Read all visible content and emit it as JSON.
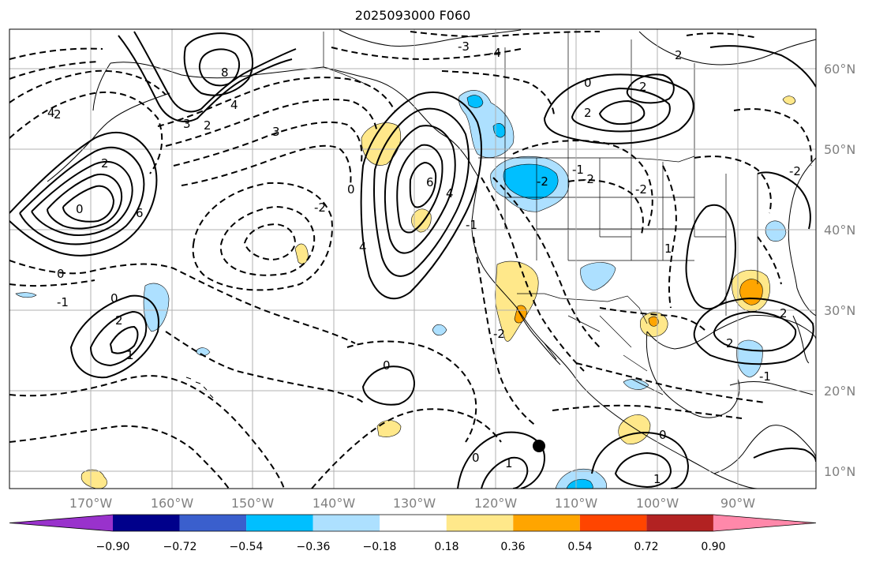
{
  "title": "2025093000 F060",
  "map": {
    "lon_labels": [
      "170°W",
      "160°W",
      "150°W",
      "140°W",
      "130°W",
      "120°W",
      "110°W",
      "100°W",
      "90°W"
    ],
    "lat_labels": [
      "60°N",
      "50°N",
      "40°N",
      "30°N",
      "20°N",
      "10°N"
    ],
    "label_color": "#808080",
    "grid_color": "#b0b0b0",
    "contour_labels_solid": [
      "0",
      "2",
      "4",
      "6",
      "8",
      "3",
      "2",
      "0",
      "4",
      "6",
      "0",
      "2",
      "1",
      "2",
      "0",
      "0",
      "1",
      "0",
      "1",
      "2",
      "0",
      "1",
      "0",
      "1"
    ],
    "contour_labels_dashed": [
      "2",
      "4",
      "3",
      "0",
      "-3",
      "-2",
      "-2",
      "-1",
      "-1",
      "-4",
      "-3",
      "-2",
      "-3",
      "-2",
      "-1",
      "-2",
      "-1",
      "-2",
      "-1",
      "-1",
      "-1",
      "-1",
      "-1",
      "-2",
      "-1",
      "-1"
    ],
    "marker": "filled-circle",
    "anomaly_colors": {
      "neg_strong": "#00bfff",
      "neg_weak": "#ade0ff",
      "pos_weak": "#ffe88a",
      "pos_mid": "#ffa500",
      "pos_strong": "#ff4500"
    }
  },
  "colorbar": {
    "colors": [
      "#9932cc",
      "#00008b",
      "#3a5fcd",
      "#00bfff",
      "#ade0ff",
      "#ffffff",
      "#ffe88a",
      "#ffa500",
      "#ff4500",
      "#b22222",
      "#ff88aa"
    ],
    "tick_labels": [
      "−0.90",
      "−0.72",
      "−0.54",
      "−0.36",
      "−0.18",
      "0.18",
      "0.36",
      "0.54",
      "0.72",
      "0.90"
    ]
  }
}
